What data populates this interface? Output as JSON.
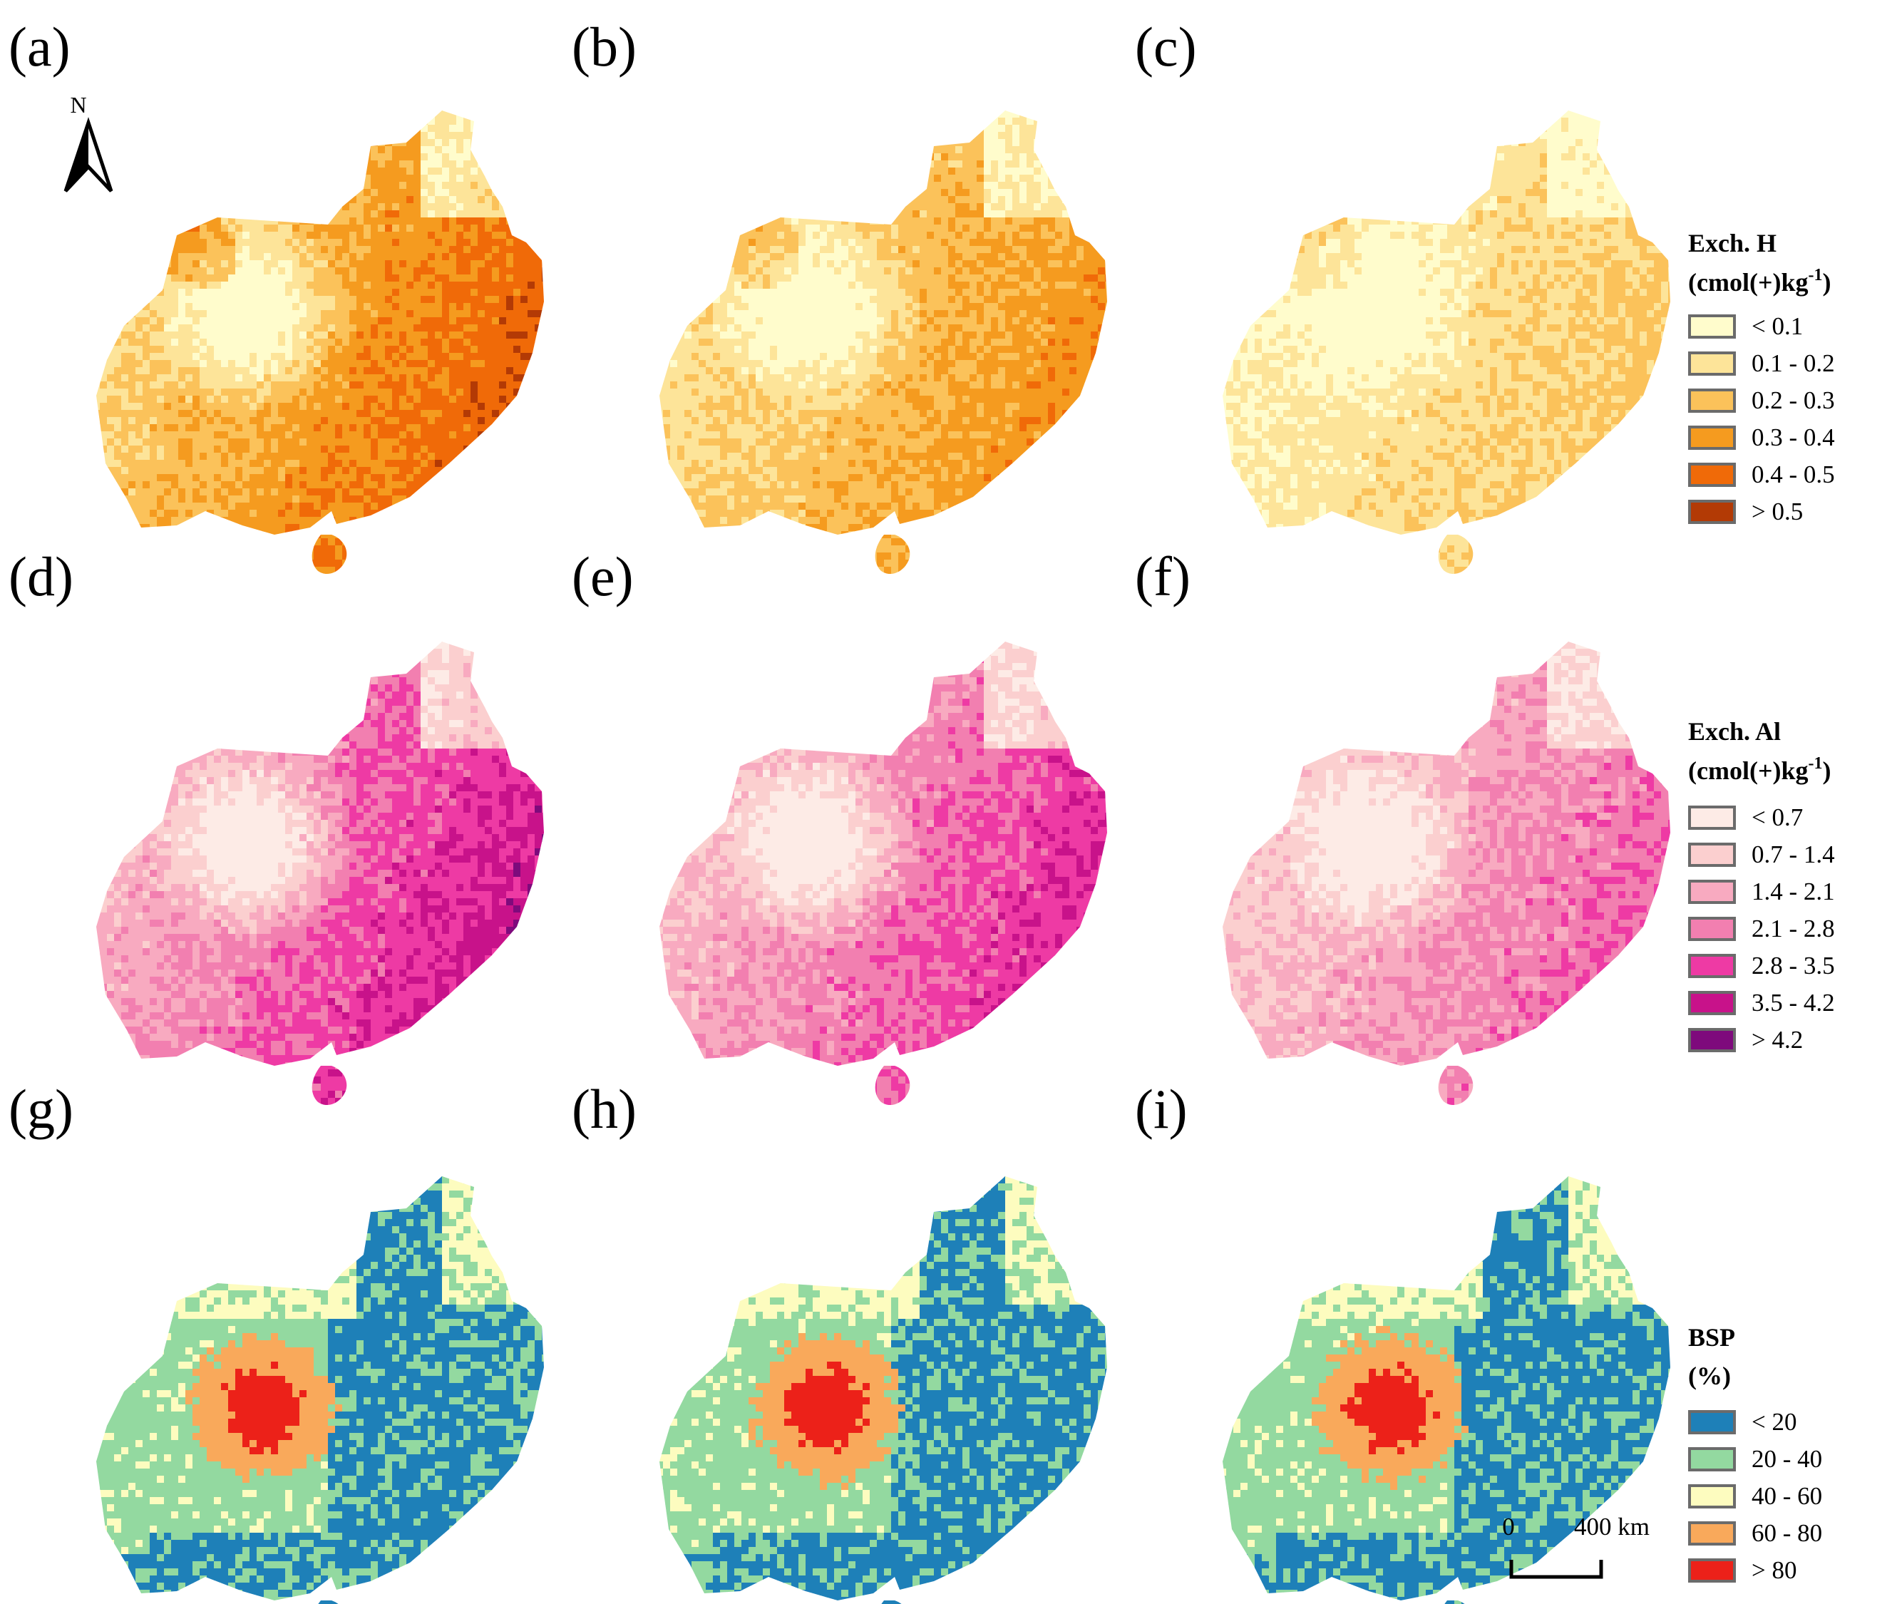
{
  "panels": [
    {
      "label": "(a)",
      "variable": "h",
      "shade": 1.15
    },
    {
      "label": "(b)",
      "variable": "h",
      "shade": 0.9
    },
    {
      "label": "(c)",
      "variable": "h",
      "shade": 0.55
    },
    {
      "label": "(d)",
      "variable": "al",
      "shade": 1.1
    },
    {
      "label": "(e)",
      "variable": "al",
      "shade": 1.0
    },
    {
      "label": "(f)",
      "variable": "al",
      "shade": 0.8
    },
    {
      "label": "(g)",
      "variable": "bsp",
      "shade": 1.0
    },
    {
      "label": "(h)",
      "variable": "bsp",
      "shade": 1.0
    },
    {
      "label": "(i)",
      "variable": "bsp",
      "shade": 1.0
    }
  ],
  "legends": {
    "h": {
      "title_line1": "Exch. H",
      "title_line2_base": "(cmol(+)kg",
      "title_line2_sup": "-1",
      "title_line2_end": ")",
      "classes": [
        {
          "label": "< 0.1",
          "color": "#fffccc"
        },
        {
          "label": "0.1 - 0.2",
          "color": "#fde499"
        },
        {
          "label": "0.2 - 0.3",
          "color": "#fbc25a"
        },
        {
          "label": "0.3 - 0.4",
          "color": "#f59b1f"
        },
        {
          "label": "0.4 - 0.5",
          "color": "#f06a08"
        },
        {
          "label": "> 0.5",
          "color": "#b33a05"
        }
      ]
    },
    "al": {
      "title_line1": "Exch. Al",
      "title_line2_base": "(cmol(+)kg",
      "title_line2_sup": "-1",
      "title_line2_end": ")",
      "classes": [
        {
          "label": "< 0.7",
          "color": "#fdebe6"
        },
        {
          "label": "0.7 - 1.4",
          "color": "#fbcfcf"
        },
        {
          "label": "1.4 - 2.1",
          "color": "#f8aac0"
        },
        {
          "label": "2.1 - 2.8",
          "color": "#f27fb0"
        },
        {
          "label": "2.8 - 3.5",
          "color": "#ee3aa4"
        },
        {
          "label": "3.5 - 4.2",
          "color": "#c8128a"
        },
        {
          "label": "> 4.2",
          "color": "#7e0a7c"
        }
      ]
    },
    "bsp": {
      "title_line1": "BSP",
      "title_line2": "(%)",
      "classes": [
        {
          "label": "< 20",
          "color": "#1e80b8"
        },
        {
          "label": "20 - 40",
          "color": "#93d9a0"
        },
        {
          "label": "40 - 60",
          "color": "#fdfcbf"
        },
        {
          "label": "60 - 80",
          "color": "#f9a95b"
        },
        {
          "label": "> 80",
          "color": "#ec2119"
        }
      ]
    }
  },
  "north_arrow": {
    "label": "N"
  },
  "scale_bar": {
    "start_label": "0",
    "end_label": "400 km"
  }
}
